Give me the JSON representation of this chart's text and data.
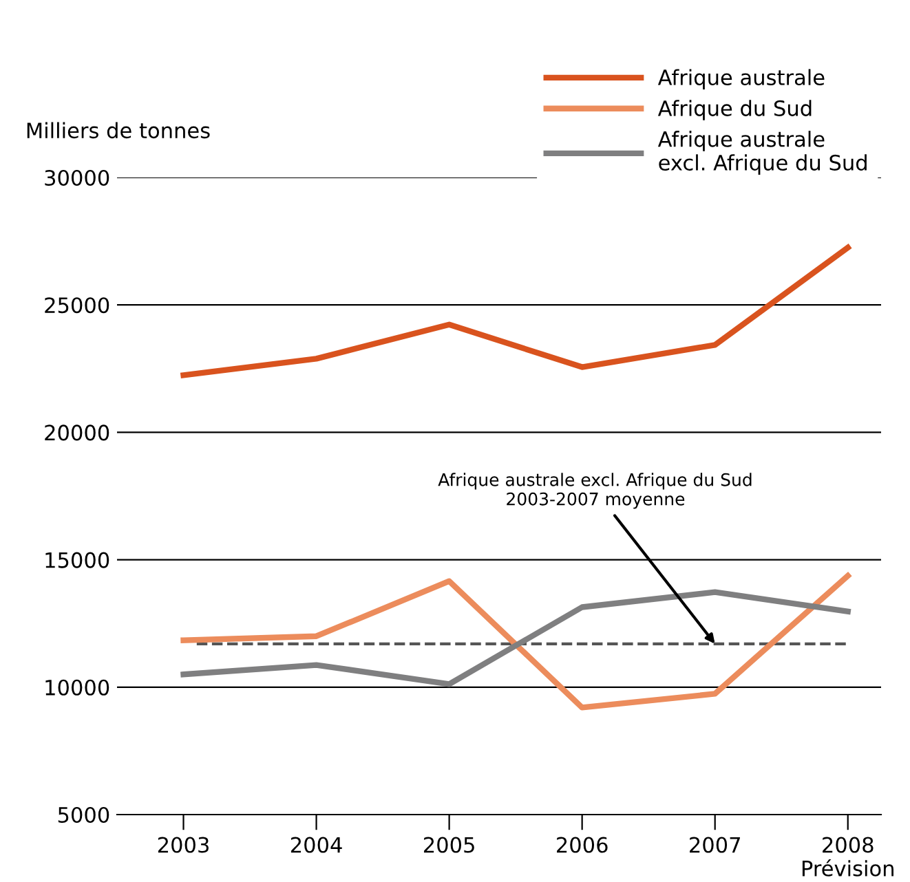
{
  "chart_data": {
    "type": "line",
    "ylabel": "Milliers de tonnes",
    "categories": [
      "2003",
      "2004",
      "2005",
      "2006",
      "2007",
      "2008\nPrévision"
    ],
    "series": [
      {
        "name": "Afrique australe",
        "color": "#d9531e",
        "values": [
          22240,
          22890,
          24230,
          22560,
          23430,
          27250
        ]
      },
      {
        "name": "Afrique du Sud",
        "color": "#ec8c5c",
        "values": [
          11840,
          12000,
          14160,
          9200,
          9740,
          14370
        ]
      },
      {
        "name": "Afrique australe\nexcl. Afrique du Sud",
        "color": "#7f7f80",
        "values": [
          10500,
          10870,
          10120,
          13140,
          13730,
          12970
        ]
      }
    ],
    "ylim": [
      5000,
      30000
    ],
    "yticks": [
      5000,
      10000,
      15000,
      20000,
      25000,
      30000
    ],
    "grid": "y",
    "legend": "top right",
    "marker": "none",
    "line_style": "solid",
    "ref_lines": [
      {
        "axis": "y",
        "value": 11700,
        "color": "#555555",
        "line_style": "dashed"
      }
    ],
    "annotations": [
      {
        "text": "Afrique australe excl. Afrique du Sud\n2003-2007 moyenne",
        "x": "2007",
        "y": 11700
      }
    ]
  }
}
